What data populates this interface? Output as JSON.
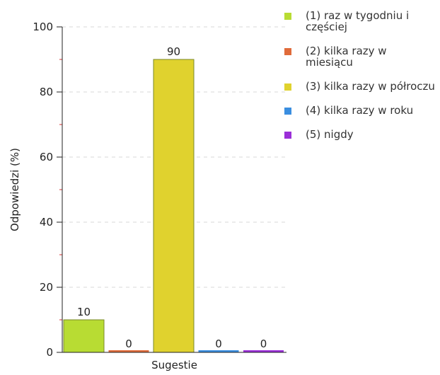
{
  "chart_data": {
    "type": "bar",
    "categories": [
      "(1) raz w tygodniu i częściej",
      "(2) kilka razy w miesiącu",
      "(3) kilka razy w półroczu",
      "(4) kilka razy w roku",
      "(5) nigdy"
    ],
    "values": [
      10,
      0,
      90,
      0,
      0
    ],
    "xlabel": "Sugestie",
    "ylabel": "Odpowiedzi (%)",
    "ylim": [
      0,
      100
    ],
    "yticks": [
      0,
      20,
      40,
      60,
      80,
      100
    ],
    "grid": true,
    "legend_position": "right",
    "colors": [
      "#b8dc33",
      "#e06b3a",
      "#e0d22e",
      "#3a8ee0",
      "#9b2fd8"
    ],
    "bar_stroke": "#7a8a2a"
  }
}
